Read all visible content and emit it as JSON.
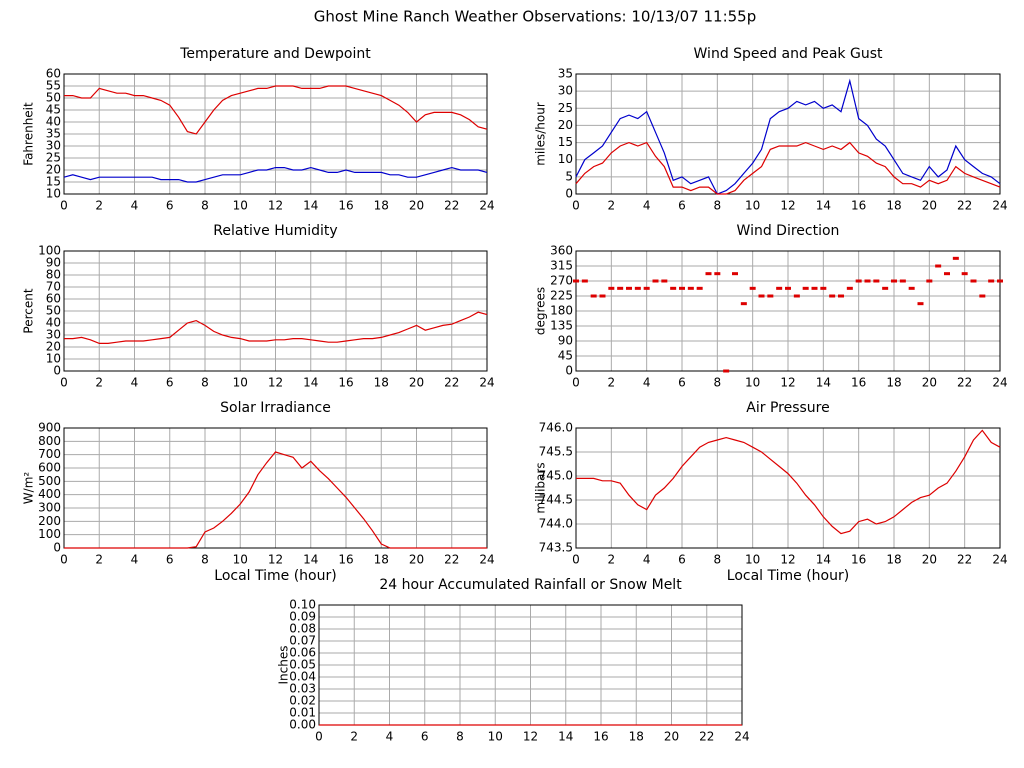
{
  "title": "Ghost Mine Ranch Weather Observations: 10/13/07 11:55p",
  "chart_data": [
    {
      "type": "line",
      "title": "Temperature and Dewpoint",
      "ylabel": "Fahrenheit",
      "xlim": [
        0,
        24
      ],
      "xticks": [
        0,
        2,
        4,
        6,
        8,
        10,
        12,
        14,
        16,
        18,
        20,
        22,
        24
      ],
      "ylim": [
        10,
        60
      ],
      "yticks": [
        10,
        15,
        20,
        25,
        30,
        35,
        40,
        45,
        50,
        55,
        60
      ],
      "grid": true,
      "x": [
        0,
        0.5,
        1,
        1.5,
        2,
        2.5,
        3,
        3.5,
        4,
        4.5,
        5,
        5.5,
        6,
        6.5,
        7,
        7.5,
        8,
        8.5,
        9,
        9.5,
        10,
        10.5,
        11,
        11.5,
        12,
        12.5,
        13,
        13.5,
        14,
        14.5,
        15,
        15.5,
        16,
        16.5,
        17,
        17.5,
        18,
        18.5,
        19,
        19.5,
        20,
        20.5,
        21,
        21.5,
        22,
        22.5,
        23,
        23.5,
        24
      ],
      "series": [
        {
          "color": "#dd0000",
          "values": [
            51,
            51,
            50,
            50,
            54,
            53,
            52,
            52,
            51,
            51,
            50,
            49,
            47,
            42,
            36,
            35,
            40,
            45,
            49,
            51,
            52,
            53,
            54,
            54,
            55,
            55,
            55,
            54,
            54,
            54,
            55,
            55,
            55,
            54,
            53,
            52,
            51,
            49,
            47,
            44,
            40,
            43,
            44,
            44,
            44,
            43,
            41,
            38,
            37
          ]
        },
        {
          "color": "#0000cc",
          "values": [
            17,
            18,
            17,
            16,
            17,
            17,
            17,
            17,
            17,
            17,
            17,
            16,
            16,
            16,
            15,
            15,
            16,
            17,
            18,
            18,
            18,
            19,
            20,
            20,
            21,
            21,
            20,
            20,
            21,
            20,
            19,
            19,
            20,
            19,
            19,
            19,
            19,
            18,
            18,
            17,
            17,
            18,
            19,
            20,
            21,
            20,
            20,
            20,
            19
          ]
        }
      ]
    },
    {
      "type": "line",
      "title": "Wind Speed and Peak Gust",
      "ylabel": "miles/hour",
      "xlim": [
        0,
        24
      ],
      "xticks": [
        0,
        2,
        4,
        6,
        8,
        10,
        12,
        14,
        16,
        18,
        20,
        22,
        24
      ],
      "ylim": [
        0,
        35
      ],
      "yticks": [
        0,
        5,
        10,
        15,
        20,
        25,
        30,
        35
      ],
      "grid": true,
      "x": [
        0,
        0.5,
        1,
        1.5,
        2,
        2.5,
        3,
        3.5,
        4,
        4.5,
        5,
        5.5,
        6,
        6.5,
        7,
        7.5,
        8,
        8.5,
        9,
        9.5,
        10,
        10.5,
        11,
        11.5,
        12,
        12.5,
        13,
        13.5,
        14,
        14.5,
        15,
        15.5,
        16,
        16.5,
        17,
        17.5,
        18,
        18.5,
        19,
        19.5,
        20,
        20.5,
        21,
        21.5,
        22,
        22.5,
        23,
        23.5,
        24
      ],
      "series": [
        {
          "color": "#0000cc",
          "values": [
            5,
            10,
            12,
            14,
            18,
            22,
            23,
            22,
            24,
            18,
            12,
            4,
            5,
            3,
            4,
            5,
            0,
            1,
            3,
            6,
            9,
            13,
            22,
            24,
            25,
            27,
            26,
            27,
            25,
            26,
            24,
            33,
            22,
            20,
            16,
            14,
            10,
            6,
            5,
            4,
            8,
            5,
            7,
            14,
            10,
            8,
            6,
            5,
            3
          ]
        },
        {
          "color": "#dd0000",
          "values": [
            3,
            6,
            8,
            9,
            12,
            14,
            15,
            14,
            15,
            11,
            8,
            2,
            2,
            1,
            2,
            2,
            0,
            0,
            1,
            4,
            6,
            8,
            13,
            14,
            14,
            14,
            15,
            14,
            13,
            14,
            13,
            15,
            12,
            11,
            9,
            8,
            5,
            3,
            3,
            2,
            4,
            3,
            4,
            8,
            6,
            5,
            4,
            3,
            2
          ]
        }
      ]
    },
    {
      "type": "line",
      "title": "Relative Humidity",
      "ylabel": "Percent",
      "xlim": [
        0,
        24
      ],
      "xticks": [
        0,
        2,
        4,
        6,
        8,
        10,
        12,
        14,
        16,
        18,
        20,
        22,
        24
      ],
      "ylim": [
        0,
        100
      ],
      "yticks": [
        0,
        10,
        20,
        30,
        40,
        50,
        60,
        70,
        80,
        90,
        100
      ],
      "grid": true,
      "x": [
        0,
        0.5,
        1,
        1.5,
        2,
        2.5,
        3,
        3.5,
        4,
        4.5,
        5,
        5.5,
        6,
        6.5,
        7,
        7.5,
        8,
        8.5,
        9,
        9.5,
        10,
        10.5,
        11,
        11.5,
        12,
        12.5,
        13,
        13.5,
        14,
        14.5,
        15,
        15.5,
        16,
        16.5,
        17,
        17.5,
        18,
        18.5,
        19,
        19.5,
        20,
        20.5,
        21,
        21.5,
        22,
        22.5,
        23,
        23.5,
        24
      ],
      "series": [
        {
          "color": "#dd0000",
          "values": [
            27,
            27,
            28,
            26,
            23,
            23,
            24,
            25,
            25,
            25,
            26,
            27,
            28,
            34,
            40,
            42,
            38,
            33,
            30,
            28,
            27,
            25,
            25,
            25,
            26,
            26,
            27,
            27,
            26,
            25,
            24,
            24,
            25,
            26,
            27,
            27,
            28,
            30,
            32,
            35,
            38,
            34,
            36,
            38,
            39,
            42,
            45,
            49,
            47
          ]
        }
      ]
    },
    {
      "type": "scatter",
      "title": "Wind Direction",
      "ylabel": "degrees",
      "xlim": [
        0,
        24
      ],
      "xticks": [
        0,
        2,
        4,
        6,
        8,
        10,
        12,
        14,
        16,
        18,
        20,
        22,
        24
      ],
      "ylim": [
        0,
        360
      ],
      "yticks": [
        0,
        45,
        90,
        135,
        180,
        225,
        270,
        315,
        360
      ],
      "grid": true,
      "x": [
        0,
        0.5,
        1,
        1.5,
        2,
        2.5,
        3,
        3.5,
        4,
        4.5,
        5,
        5.5,
        6,
        6.5,
        7,
        7.5,
        8,
        8.5,
        9,
        9.5,
        10,
        10.5,
        11,
        11.5,
        12,
        12.5,
        13,
        13.5,
        14,
        14.5,
        15,
        15.5,
        16,
        16.5,
        17,
        17.5,
        18,
        18.5,
        19,
        19.5,
        20,
        20.5,
        21,
        21.5,
        22,
        22.5,
        23,
        23.5,
        24
      ],
      "series": [
        {
          "color": "#dd0000",
          "values": [
            270,
            270,
            225,
            225,
            248,
            248,
            248,
            248,
            248,
            270,
            270,
            248,
            248,
            248,
            248,
            292,
            292,
            0,
            292,
            202,
            248,
            225,
            225,
            248,
            248,
            225,
            248,
            248,
            248,
            225,
            225,
            248,
            270,
            270,
            270,
            248,
            270,
            270,
            248,
            202,
            270,
            315,
            292,
            338,
            292,
            270,
            225,
            270,
            270
          ]
        }
      ]
    },
    {
      "type": "line",
      "title": "Solar Irradiance",
      "ylabel": "W/m²",
      "xlabel": "Local Time (hour)",
      "xlim": [
        0,
        24
      ],
      "xticks": [
        0,
        2,
        4,
        6,
        8,
        10,
        12,
        14,
        16,
        18,
        20,
        22,
        24
      ],
      "ylim": [
        0,
        900
      ],
      "yticks": [
        0,
        100,
        200,
        300,
        400,
        500,
        600,
        700,
        800,
        900
      ],
      "grid": true,
      "x": [
        0,
        0.5,
        1,
        1.5,
        2,
        2.5,
        3,
        3.5,
        4,
        4.5,
        5,
        5.5,
        6,
        6.5,
        7,
        7.5,
        8,
        8.5,
        9,
        9.5,
        10,
        10.5,
        11,
        11.5,
        12,
        12.5,
        13,
        13.5,
        14,
        14.5,
        15,
        15.5,
        16,
        16.5,
        17,
        17.5,
        18,
        18.5,
        19,
        19.5,
        20,
        20.5,
        21,
        21.5,
        22,
        22.5,
        23,
        23.5,
        24
      ],
      "series": [
        {
          "color": "#dd0000",
          "values": [
            0,
            0,
            0,
            0,
            0,
            0,
            0,
            0,
            0,
            0,
            0,
            0,
            0,
            0,
            0,
            10,
            120,
            150,
            200,
            260,
            330,
            420,
            550,
            640,
            720,
            700,
            680,
            600,
            650,
            580,
            520,
            450,
            380,
            300,
            220,
            130,
            30,
            0,
            0,
            0,
            0,
            0,
            0,
            0,
            0,
            0,
            0,
            0,
            0
          ]
        }
      ]
    },
    {
      "type": "line",
      "title": "Air Pressure",
      "ylabel": "millibars",
      "xlabel": "Local Time (hour)",
      "xlim": [
        0,
        24
      ],
      "xticks": [
        0,
        2,
        4,
        6,
        8,
        10,
        12,
        14,
        16,
        18,
        20,
        22,
        24
      ],
      "ylim": [
        743.5,
        746
      ],
      "yticks": [
        743.5,
        {
          "value": 744,
          "label": "744.0"
        },
        744.5,
        {
          "value": 745,
          "label": "745.0"
        },
        745.5,
        {
          "value": 746,
          "label": "746.0"
        }
      ],
      "grid": true,
      "x": [
        0,
        0.5,
        1,
        1.5,
        2,
        2.5,
        3,
        3.5,
        4,
        4.5,
        5,
        5.5,
        6,
        6.5,
        7,
        7.5,
        8,
        8.5,
        9,
        9.5,
        10,
        10.5,
        11,
        11.5,
        12,
        12.5,
        13,
        13.5,
        14,
        14.5,
        15,
        15.5,
        16,
        16.5,
        17,
        17.5,
        18,
        18.5,
        19,
        19.5,
        20,
        20.5,
        21,
        21.5,
        22,
        22.5,
        23,
        23.5,
        24
      ],
      "series": [
        {
          "color": "#dd0000",
          "values": [
            744.95,
            744.95,
            744.95,
            744.9,
            744.9,
            744.85,
            744.6,
            744.4,
            744.3,
            744.6,
            744.75,
            744.95,
            745.2,
            745.4,
            745.6,
            745.7,
            745.75,
            745.8,
            745.75,
            745.7,
            745.6,
            745.5,
            745.35,
            745.2,
            745.05,
            744.85,
            744.6,
            744.4,
            744.15,
            743.95,
            743.8,
            743.85,
            744.05,
            744.1,
            744,
            744.05,
            744.15,
            744.3,
            744.45,
            744.55,
            744.6,
            744.75,
            744.85,
            745.1,
            745.4,
            745.75,
            745.95,
            745.7,
            745.6
          ]
        }
      ]
    },
    {
      "type": "line",
      "title": "24 hour Accumulated Rainfall or Snow Melt",
      "ylabel": "Inches",
      "xlim": [
        0,
        24
      ],
      "xticks": [
        0,
        2,
        4,
        6,
        8,
        10,
        12,
        14,
        16,
        18,
        20,
        22,
        24
      ],
      "ylim": [
        0,
        0.1
      ],
      "yticks": [
        {
          "value": 0,
          "label": "0.00"
        },
        {
          "value": 0.01,
          "label": "0.01"
        },
        {
          "value": 0.02,
          "label": "0.02"
        },
        {
          "value": 0.03,
          "label": "0.03"
        },
        {
          "value": 0.04,
          "label": "0.04"
        },
        {
          "value": 0.05,
          "label": "0.05"
        },
        {
          "value": 0.06,
          "label": "0.06"
        },
        {
          "value": 0.07,
          "label": "0.07"
        },
        {
          "value": 0.08,
          "label": "0.08"
        },
        {
          "value": 0.09,
          "label": "0.09"
        },
        {
          "value": 0.1,
          "label": "0.10"
        }
      ],
      "grid": true,
      "x": [
        0,
        24
      ],
      "series": [
        {
          "color": "#dd0000",
          "values": [
            0,
            0
          ]
        }
      ]
    }
  ]
}
